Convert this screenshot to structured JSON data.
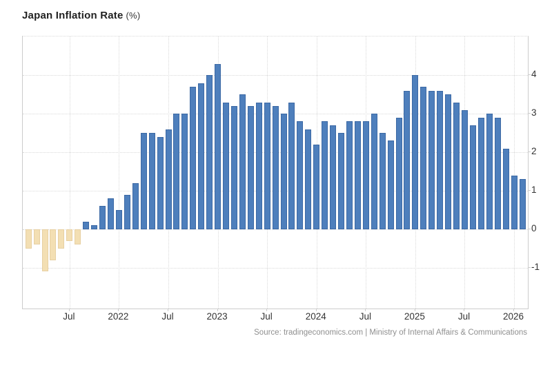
{
  "title": {
    "main": "Japan Inflation Rate",
    "unit": "(%)"
  },
  "source": "Source: tradingeconomics.com | Ministry of Internal Affairs & Communications",
  "colors": {
    "positive_bar": "#4e7fbc",
    "positive_bar_border": "#3b68a4",
    "negative_bar": "#f3dfb3",
    "negative_bar_border": "#e7d0a2",
    "grid": "#d9d9d9",
    "plot_border": "#cccccc",
    "axis_text": "#333333",
    "title_text": "#222222",
    "source_text": "#8f8f8f"
  },
  "chart_data": {
    "type": "bar",
    "title": "Japan Inflation Rate (%)",
    "xlabel": "",
    "ylabel": "",
    "ylim": [
      -2,
      5
    ],
    "grid": "dotted",
    "legend": "none",
    "y_axis_side": "right",
    "y_ticks": [
      4,
      3,
      2,
      1,
      0,
      -1
    ],
    "x": [
      "2021-02",
      "2021-03",
      "2021-04",
      "2021-05",
      "2021-06",
      "2021-07",
      "2021-08",
      "2021-09",
      "2021-10",
      "2021-11",
      "2021-12",
      "2022-01",
      "2022-02",
      "2022-03",
      "2022-04",
      "2022-05",
      "2022-06",
      "2022-07",
      "2022-08",
      "2022-09",
      "2022-10",
      "2022-11",
      "2022-12",
      "2023-01",
      "2023-02",
      "2023-03",
      "2023-04",
      "2023-05",
      "2023-06",
      "2023-07",
      "2023-08",
      "2023-09",
      "2023-10",
      "2023-11",
      "2023-12",
      "2024-01",
      "2024-02",
      "2024-03",
      "2024-04",
      "2024-05",
      "2024-06",
      "2024-07",
      "2024-08",
      "2024-09",
      "2024-10",
      "2024-11",
      "2024-12",
      "2025-01",
      "2025-02",
      "2025-03",
      "2025-04",
      "2025-05",
      "2025-06",
      "2025-07",
      "2025-08",
      "2025-09",
      "2025-10",
      "2025-11",
      "2025-12",
      "2026-01",
      "2026-02"
    ],
    "values": [
      -0.5,
      -0.4,
      -1.1,
      -0.8,
      -0.5,
      -0.3,
      -0.4,
      0.2,
      0.1,
      0.6,
      0.8,
      0.5,
      0.9,
      1.2,
      2.5,
      2.5,
      2.4,
      2.6,
      3.0,
      3.0,
      3.7,
      3.8,
      4.0,
      4.3,
      3.3,
      3.2,
      3.5,
      3.2,
      3.3,
      3.3,
      3.2,
      3.0,
      3.3,
      2.8,
      2.6,
      2.2,
      2.8,
      2.7,
      2.5,
      2.8,
      2.8,
      2.8,
      3.0,
      2.5,
      2.3,
      2.9,
      3.6,
      4.0,
      3.7,
      3.6,
      3.6,
      3.5,
      3.3,
      3.1,
      2.7,
      2.9,
      3.0,
      2.9,
      2.1,
      1.4,
      1.3
    ],
    "x_ticks": [
      {
        "index": 5,
        "label": "Jul"
      },
      {
        "index": 11,
        "label": "2022"
      },
      {
        "index": 17,
        "label": "Jul"
      },
      {
        "index": 23,
        "label": "2023"
      },
      {
        "index": 29,
        "label": "Jul"
      },
      {
        "index": 35,
        "label": "2024"
      },
      {
        "index": 41,
        "label": "Jul"
      },
      {
        "index": 47,
        "label": "2025"
      },
      {
        "index": 53,
        "label": "Jul"
      },
      {
        "index": 59,
        "label": "2026"
      }
    ]
  }
}
